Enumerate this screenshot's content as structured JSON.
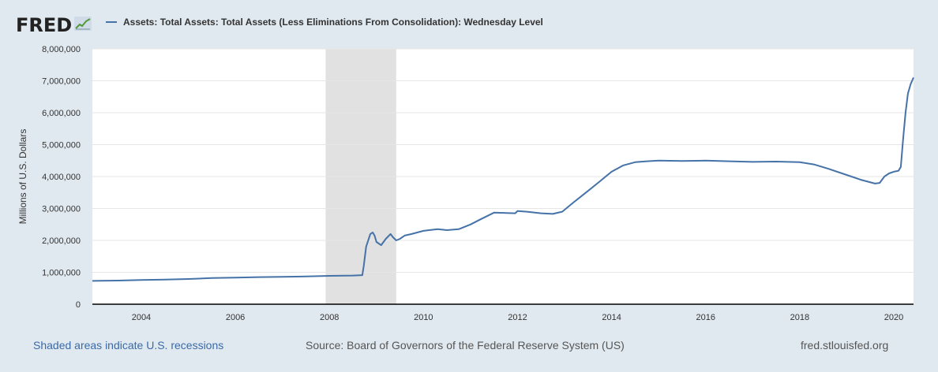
{
  "header": {
    "logo_text": "FRED",
    "logo_icon": "chart-line-icon"
  },
  "colors": {
    "series": "#4572a7",
    "recession": "#e1e1e1",
    "background": "#e1e9f0",
    "plot": "#ffffff",
    "grid": "#e6e6e6"
  },
  "chart_data": {
    "type": "line",
    "title": "Assets: Total Assets: Total Assets (Less Eliminations From Consolidation): Wednesday Level",
    "ylabel": "Millions of U.S. Dollars",
    "xlabel": "",
    "xlim": [
      2002.96,
      2020.42
    ],
    "ylim": [
      0,
      8000000
    ],
    "x_ticks": [
      2004,
      2006,
      2008,
      2010,
      2012,
      2014,
      2016,
      2018,
      2020
    ],
    "y_ticks": [
      0,
      1000000,
      2000000,
      3000000,
      4000000,
      5000000,
      6000000,
      7000000,
      8000000
    ],
    "y_tick_labels": [
      "0",
      "1,000,000",
      "2,000,000",
      "3,000,000",
      "4,000,000",
      "5,000,000",
      "6,000,000",
      "7,000,000",
      "8,000,000"
    ],
    "grid": true,
    "recessions": [
      {
        "start": 2007.92,
        "end": 2009.42
      }
    ],
    "series": [
      {
        "name": "Assets: Total Assets: Total Assets (Less Eliminations From Consolidation): Wednesday Level",
        "x": [
          2002.96,
          2003.5,
          2004.0,
          2004.5,
          2005.0,
          2005.5,
          2006.0,
          2006.5,
          2007.0,
          2007.5,
          2008.0,
          2008.5,
          2008.7,
          2008.73,
          2008.78,
          2008.87,
          2008.92,
          2008.96,
          2009.0,
          2009.1,
          2009.2,
          2009.3,
          2009.35,
          2009.42,
          2009.5,
          2009.6,
          2009.75,
          2010.0,
          2010.3,
          2010.5,
          2010.75,
          2011.0,
          2011.2,
          2011.5,
          2011.75,
          2011.95,
          2012.0,
          2012.2,
          2012.5,
          2012.75,
          2012.95,
          2013.2,
          2013.5,
          2013.75,
          2014.0,
          2014.25,
          2014.5,
          2014.75,
          2015.0,
          2015.5,
          2016.0,
          2016.5,
          2017.0,
          2017.5,
          2018.0,
          2018.3,
          2018.6,
          2019.0,
          2019.3,
          2019.6,
          2019.7,
          2019.8,
          2019.9,
          2020.0,
          2020.1,
          2020.15,
          2020.2,
          2020.25,
          2020.3,
          2020.36,
          2020.42
        ],
        "values": [
          730000,
          740000,
          760000,
          770000,
          790000,
          820000,
          835000,
          850000,
          860000,
          870000,
          890000,
          900000,
          910000,
          1200000,
          1800000,
          2200000,
          2250000,
          2150000,
          1950000,
          1850000,
          2050000,
          2200000,
          2100000,
          2000000,
          2050000,
          2150000,
          2200000,
          2300000,
          2350000,
          2320000,
          2350000,
          2500000,
          2650000,
          2870000,
          2860000,
          2850000,
          2920000,
          2900000,
          2850000,
          2830000,
          2900000,
          3200000,
          3550000,
          3850000,
          4150000,
          4350000,
          4450000,
          4480000,
          4500000,
          4490000,
          4500000,
          4480000,
          4460000,
          4470000,
          4450000,
          4380000,
          4250000,
          4050000,
          3900000,
          3780000,
          3800000,
          4000000,
          4100000,
          4150000,
          4180000,
          4300000,
          5200000,
          6000000,
          6600000,
          6900000,
          7100000
        ]
      }
    ]
  },
  "footer": {
    "recession_note": "Shaded areas indicate U.S. recessions",
    "source": "Source: Board of Governors of the Federal Reserve System (US)",
    "site": "fred.stlouisfed.org"
  }
}
